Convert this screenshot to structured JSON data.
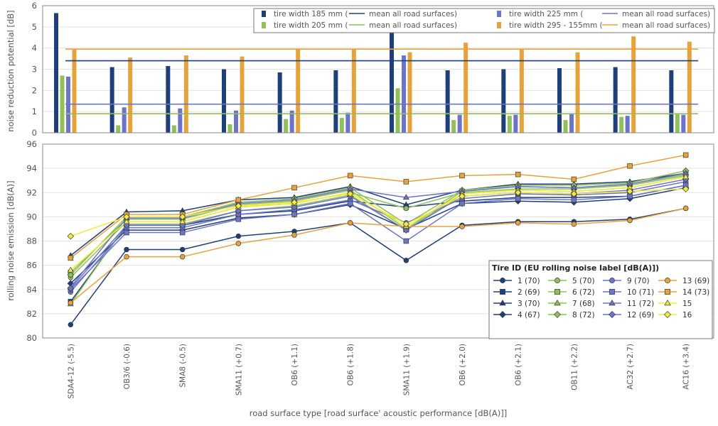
{
  "figure": {
    "top_ylabel": "noise reduction potential [dB]",
    "bottom_ylabel": "rolling noise emission [dB(A)]",
    "xlabel": "road surface type [road surface' acoustic performance [dB(A)]]",
    "legend_title": "Tire ID (EU rolling noise label [dB(A)])"
  },
  "chart_data": [
    {
      "type": "bar",
      "ylabel": "noise reduction potential [dB]",
      "ylim": [
        0,
        6
      ],
      "yticks": [
        0,
        1,
        2,
        3,
        4,
        5,
        6
      ],
      "grid": true,
      "legend_placement": "top-right",
      "categories": [
        "SDA4-12 (-5.5)",
        "OB3/6 (-0.6)",
        "SMA8 (-0.5)",
        "SMA11 (+0.7)",
        "OB6 (+1.1)",
        "OB6 (+1.8)",
        "SMA11 (+1.9)",
        "OB6 (+2.0)",
        "OB6 (+2.1)",
        "OB11 (+2.2)",
        "AC32 (+2.7)",
        "AC16 (+3.4)"
      ],
      "series": [
        {
          "name": "tire width 185 mm (",
          "color": "#1f3f7a",
          "values": [
            5.65,
            3.1,
            3.15,
            3.0,
            2.85,
            2.95,
            4.75,
            2.95,
            3.0,
            3.05,
            3.1,
            2.95
          ]
        },
        {
          "name": "tire width 205 mm (",
          "color": "#8fc05a",
          "values": [
            2.7,
            0.35,
            0.35,
            0.4,
            0.65,
            0.7,
            2.1,
            0.6,
            0.8,
            0.6,
            0.75,
            0.9
          ]
        },
        {
          "name": "tire width 225 mm (",
          "color": "#6b74c9",
          "values": [
            2.65,
            1.2,
            1.15,
            1.05,
            1.05,
            0.95,
            3.65,
            0.85,
            0.85,
            0.9,
            0.8,
            0.85
          ]
        },
        {
          "name": "tire width 295 - 155mm (",
          "color": "#e6a33b",
          "values": [
            3.95,
            3.55,
            3.65,
            3.6,
            3.95,
            3.95,
            3.8,
            4.25,
            3.95,
            3.8,
            4.55,
            4.3
          ]
        }
      ],
      "mean_lines": [
        {
          "name": "mean all road surfaces)",
          "color": "#1f3f7a",
          "value": 3.4
        },
        {
          "name": "mean all road surfaces)",
          "color": "#8fc05a",
          "value": 0.9
        },
        {
          "name": "mean all road surfaces)",
          "color": "#6b74c9",
          "value": 1.35
        },
        {
          "name": "mean all road surfaces)",
          "color": "#e6a33b",
          "value": 3.95
        }
      ]
    },
    {
      "type": "line",
      "ylabel": "rolling noise emission [dB(A)]",
      "xlabel": "road surface type [road surface' acoustic performance [dB(A)]]",
      "ylim": [
        80,
        96
      ],
      "yticks": [
        80,
        82,
        84,
        86,
        88,
        90,
        92,
        94,
        96
      ],
      "grid": true,
      "legend_placement": "bottom-right",
      "categories": [
        "SDA4-12 (-5.5)",
        "OB3/6 (-0.6)",
        "SMA8 (-0.5)",
        "SMA11 (+0.7)",
        "OB6 (+1.1)",
        "OB6 (+1.8)",
        "SMA11 (+1.9)",
        "OB6 (+2.0)",
        "OB6 (+2.1)",
        "OB11 (+2.2)",
        "AC32 (+2.7)",
        "AC16 (+3.4)"
      ],
      "series": [
        {
          "name": "1 (70)",
          "color": "#1f3f7a",
          "marker": "circle",
          "values": [
            81.1,
            87.3,
            87.3,
            88.4,
            88.8,
            89.5,
            86.4,
            89.3,
            89.6,
            89.6,
            89.8,
            90.7
          ]
        },
        {
          "name": "2 (69)",
          "color": "#1f3f7a",
          "marker": "square",
          "values": [
            83.0,
            89.3,
            89.3,
            90.2,
            90.5,
            91.3,
            90.8,
            91.3,
            91.6,
            91.6,
            91.7,
            92.6
          ]
        },
        {
          "name": "3 (70)",
          "color": "#1f3f7a",
          "marker": "triangle",
          "values": [
            86.8,
            90.4,
            90.5,
            91.4,
            91.6,
            92.5,
            91.0,
            92.2,
            92.7,
            92.7,
            92.9,
            93.6
          ]
        },
        {
          "name": "4 (67)",
          "color": "#1f3f7a",
          "marker": "diamond",
          "values": [
            84.5,
            88.9,
            88.9,
            89.9,
            90.2,
            91.0,
            89.0,
            91.1,
            91.3,
            91.2,
            91.5,
            92.4
          ]
        },
        {
          "name": "5 (70)",
          "color": "#8fc05a",
          "marker": "circle",
          "values": [
            85.0,
            89.6,
            89.6,
            90.8,
            91.1,
            92.0,
            90.7,
            92.0,
            92.3,
            92.3,
            92.6,
            93.4
          ]
        },
        {
          "name": "6 (72)",
          "color": "#8fc05a",
          "marker": "square",
          "values": [
            85.4,
            89.8,
            89.8,
            91.0,
            91.3,
            92.2,
            89.0,
            92.1,
            92.5,
            92.4,
            92.7,
            93.5
          ]
        },
        {
          "name": "7 (68)",
          "color": "#8fc05a",
          "marker": "triangle",
          "values": [
            82.8,
            89.4,
            89.4,
            90.5,
            90.9,
            91.8,
            88.9,
            91.9,
            92.2,
            92.1,
            92.4,
            93.3
          ]
        },
        {
          "name": "8 (72)",
          "color": "#8fc05a",
          "marker": "diamond",
          "values": [
            85.2,
            90.0,
            90.0,
            91.2,
            91.5,
            92.4,
            89.4,
            92.2,
            92.6,
            92.6,
            92.8,
            93.8
          ]
        },
        {
          "name": "9 (70)",
          "color": "#6b74c9",
          "marker": "circle",
          "values": [
            83.8,
            89.1,
            89.1,
            90.2,
            90.6,
            91.4,
            89.5,
            91.5,
            91.9,
            91.8,
            92.0,
            92.9
          ]
        },
        {
          "name": "10 (71)",
          "color": "#6b74c9",
          "marker": "square",
          "values": [
            84.0,
            88.7,
            88.7,
            89.8,
            90.2,
            91.1,
            88.0,
            91.1,
            91.5,
            91.4,
            91.7,
            92.6
          ]
        },
        {
          "name": "11 (72)",
          "color": "#6b74c9",
          "marker": "triangle",
          "values": [
            84.2,
            89.9,
            89.9,
            91.1,
            91.4,
            92.3,
            91.6,
            92.1,
            92.5,
            92.4,
            92.7,
            93.6
          ]
        },
        {
          "name": "12 (69)",
          "color": "#6b74c9",
          "marker": "diamond",
          "values": [
            84.1,
            89.3,
            89.3,
            90.5,
            90.8,
            91.7,
            88.9,
            91.7,
            92.0,
            91.9,
            92.2,
            93.1
          ]
        },
        {
          "name": "13 (69)",
          "color": "#e6a33b",
          "marker": "circle",
          "values": [
            82.9,
            86.7,
            86.7,
            87.8,
            88.5,
            89.5,
            89.2,
            89.2,
            89.5,
            89.4,
            89.7,
            90.7
          ]
        },
        {
          "name": "14 (73)",
          "color": "#e6a33b",
          "marker": "square",
          "values": [
            86.6,
            90.2,
            90.2,
            91.4,
            92.4,
            93.4,
            92.9,
            93.4,
            93.5,
            93.1,
            94.2,
            95.1
          ]
        },
        {
          "name": "15",
          "color": "#f2ea3c",
          "marker": "triangle",
          "values": [
            85.6,
            89.6,
            89.6,
            90.8,
            91.1,
            92.0,
            89.2,
            91.9,
            92.2,
            92.1,
            92.4,
            93.3
          ]
        },
        {
          "name": "16",
          "color": "#f2ea3c",
          "marker": "diamond",
          "values": [
            88.4,
            90.0,
            90.0,
            90.9,
            91.2,
            91.9,
            89.4,
            91.7,
            92.0,
            91.9,
            92.1,
            92.3
          ]
        }
      ]
    }
  ]
}
